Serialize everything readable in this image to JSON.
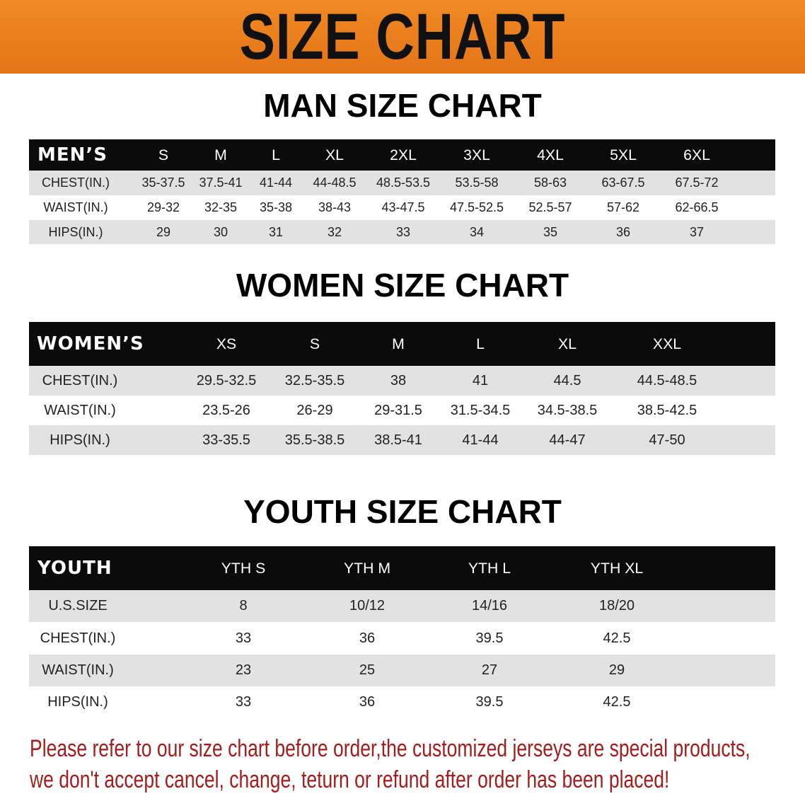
{
  "banner": {
    "title": "SIZE CHART",
    "color": "#e8791c"
  },
  "men": {
    "title": "MAN SIZE CHART",
    "headers": [
      "MEN’S",
      "S",
      "M",
      "L",
      "XL",
      "2XL",
      "3XL",
      "4XL",
      "5XL",
      "6XL"
    ],
    "rows": [
      [
        "CHEST(IN.)",
        "35-37.5",
        "37.5-41",
        "41-44",
        "44-48.5",
        "48.5-53.5",
        "53.5-58",
        "58-63",
        "63-67.5",
        "67.5-72"
      ],
      [
        "WAIST(IN.)",
        "29-32",
        "32-35",
        "35-38",
        "38-43",
        "43-47.5",
        "47.5-52.5",
        "52.5-57",
        "57-62",
        "62-66.5"
      ],
      [
        "HIPS(IN.)",
        "29",
        "30",
        "31",
        "32",
        "33",
        "34",
        "35",
        "36",
        "37"
      ]
    ]
  },
  "women": {
    "title": "WOMEN SIZE CHART",
    "headers": [
      "WOMEN’S",
      "XS",
      "S",
      "M",
      "L",
      "XL",
      "XXL"
    ],
    "rows": [
      [
        "CHEST(IN.)",
        "29.5-32.5",
        "32.5-35.5",
        "38",
        "41",
        "44.5",
        "44.5-48.5"
      ],
      [
        "WAIST(IN.)",
        "23.5-26",
        "26-29",
        "29-31.5",
        "31.5-34.5",
        "34.5-38.5",
        "38.5-42.5"
      ],
      [
        "HIPS(IN.)",
        "33-35.5",
        "35.5-38.5",
        "38.5-41",
        "41-44",
        "44-47",
        "47-50"
      ]
    ]
  },
  "youth": {
    "title": "YOUTH SIZE CHART",
    "headers": [
      "YOUTH",
      "YTH S",
      "YTH M",
      "YTH L",
      "YTH XL"
    ],
    "rows": [
      [
        "U.S.SIZE",
        "8",
        "10/12",
        "14/16",
        "18/20"
      ],
      [
        "CHEST(IN.)",
        "33",
        "36",
        "39.5",
        "42.5"
      ],
      [
        "WAIST(IN.)",
        "23",
        "25",
        "27",
        "29"
      ],
      [
        "HIPS(IN.)",
        "33",
        "36",
        "39.5",
        "42.5"
      ]
    ]
  },
  "note": {
    "line1": "Please refer to our size chart before order,the customized jerseys are special products,",
    "line2": "we don't accept cancel, change, teturn or refund after order has been placed!",
    "color": "#a41d1d"
  }
}
